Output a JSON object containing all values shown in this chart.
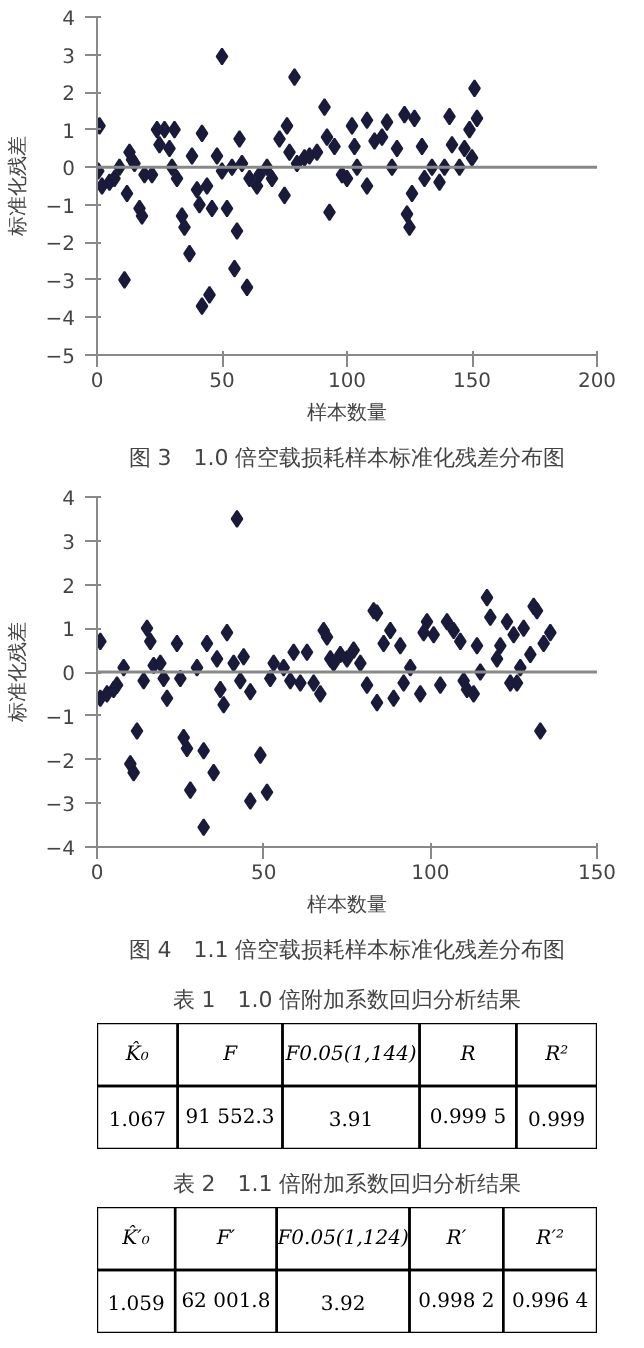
{
  "chart_data": [
    {
      "type": "scatter",
      "title": "图 3　1.0 倍空载损耗样本标准化残差分布图",
      "xlabel": "样本数量",
      "ylabel": "标准化残差",
      "color": "#1a1a3a",
      "marker": "diamond",
      "grid": false,
      "ref_lines": [
        {
          "axis": "y",
          "value": 0,
          "color": "#888888"
        }
      ],
      "xlim": [
        0,
        200
      ],
      "ylim": [
        -5,
        4
      ],
      "xticks": [
        0,
        50,
        100,
        150,
        200
      ],
      "yticks": [
        -5,
        -4,
        -3,
        -2,
        -1,
        0,
        1,
        2,
        3,
        4
      ],
      "x": [
        1,
        0.5,
        2,
        5,
        7,
        9,
        12,
        11,
        13,
        14,
        15,
        17,
        18,
        19,
        22,
        24,
        25,
        27,
        29,
        31,
        30,
        32,
        34,
        35,
        37,
        38,
        40,
        41,
        42,
        42,
        44,
        45,
        46,
        48,
        50,
        50,
        52,
        54,
        55,
        56,
        57,
        58,
        60,
        61,
        64,
        65,
        68,
        70,
        73,
        75,
        76,
        77,
        79,
        80,
        83,
        85,
        88,
        91,
        92,
        93,
        95,
        98,
        100,
        102,
        103,
        104,
        108,
        108,
        111,
        114,
        116,
        118,
        120,
        123,
        124,
        125,
        126,
        127,
        130,
        131,
        134,
        137,
        139,
        141,
        142,
        145,
        147,
        149,
        150,
        151,
        152
      ],
      "values": [
        1.1,
        -0.1,
        -0.5,
        -0.4,
        -0.3,
        0,
        -0.7,
        -3.0,
        0.4,
        0.2,
        0.1,
        -1.1,
        -1.3,
        -0.2,
        -0.2,
        1.0,
        0.6,
        1.0,
        0.5,
        1.0,
        0,
        -0.3,
        -1.3,
        -1.6,
        -2.3,
        0.3,
        -0.6,
        -1.0,
        0.9,
        -3.7,
        -0.5,
        -3.4,
        -1.1,
        0.3,
        2.95,
        -0.1,
        -1.1,
        0,
        -2.7,
        -1.7,
        0.75,
        0.1,
        -3.2,
        -0.3,
        -0.5,
        -0.2,
        0,
        -0.3,
        0.75,
        -0.75,
        1.1,
        0.4,
        2.4,
        0.1,
        0.25,
        0.3,
        0.4,
        1.6,
        0.8,
        -1.2,
        0.55,
        -0.2,
        -0.3,
        1.1,
        0.55,
        0,
        -0.5,
        1.25,
        0.7,
        0.8,
        1.2,
        0,
        0.5,
        1.4,
        -1.25,
        -1.6,
        -0.7,
        1.3,
        0.55,
        -0.3,
        0,
        -0.4,
        0,
        1.35,
        0.6,
        0,
        0.5,
        1.0,
        0.25,
        2.1,
        1.3
      ]
    },
    {
      "type": "scatter",
      "title": "图 4　1.1 倍空载损耗样本标准化残差分布图",
      "xlabel": "样本数量",
      "ylabel": "标准化残差",
      "color": "#1a1a3a",
      "marker": "diamond",
      "grid": false,
      "ref_lines": [
        {
          "axis": "y",
          "value": 0,
          "color": "#888888"
        }
      ],
      "xlim": [
        0,
        150
      ],
      "ylim": [
        -4,
        4
      ],
      "xticks": [
        0,
        50,
        100,
        150
      ],
      "yticks": [
        -4,
        -3,
        -2,
        -1,
        0,
        1,
        2,
        3,
        4
      ],
      "x": [
        1,
        1,
        3,
        5,
        6,
        8,
        10,
        11,
        12,
        14,
        15,
        16,
        17,
        19,
        20,
        21,
        24,
        25,
        26,
        27,
        28,
        30,
        32,
        32,
        33,
        35,
        36,
        37,
        38,
        39,
        41,
        42,
        43,
        44,
        46,
        46,
        49,
        51,
        52,
        53,
        56,
        58,
        59,
        61,
        63,
        65,
        67,
        68,
        69,
        70,
        71,
        73,
        75,
        77,
        79,
        81,
        83,
        84,
        84,
        86,
        88,
        89,
        91,
        92,
        94,
        97,
        98,
        99,
        101,
        103,
        105,
        107,
        109,
        110,
        111,
        113,
        114,
        115,
        117,
        118,
        120,
        121,
        123,
        124,
        125,
        126,
        127,
        128,
        130,
        131,
        132,
        133,
        134,
        136
      ],
      "values": [
        0.7,
        -0.6,
        -0.5,
        -0.4,
        -0.3,
        0.1,
        -2.1,
        -2.3,
        -1.35,
        -0.2,
        1.0,
        0.7,
        0.15,
        0.2,
        -0.15,
        -0.6,
        0.65,
        -0.15,
        -1.5,
        -1.75,
        -2.7,
        0.1,
        -1.8,
        -3.55,
        0.65,
        -2.3,
        0.3,
        -0.4,
        -0.75,
        0.9,
        0.2,
        3.5,
        -0.2,
        0.35,
        -0.45,
        -2.95,
        -1.9,
        -2.75,
        -0.15,
        0.2,
        0.1,
        -0.2,
        0.45,
        -0.25,
        0.45,
        -0.25,
        -0.5,
        0.95,
        0.8,
        0.3,
        0.2,
        0.4,
        0.3,
        0.5,
        0.2,
        -0.3,
        1.4,
        1.35,
        -0.7,
        0.65,
        0.95,
        -0.6,
        0.6,
        -0.25,
        0.1,
        -0.5,
        0.9,
        1.15,
        0.85,
        -0.3,
        1.15,
        0.95,
        0.7,
        -0.2,
        -0.4,
        -0.5,
        0.6,
        0,
        1.7,
        1.25,
        0.3,
        0.6,
        1.15,
        -0.25,
        0.85,
        -0.25,
        0.1,
        1.0,
        0.4,
        1.5,
        1.4,
        -1.35,
        0.65,
        0.9
      ]
    },
    {
      "type": "other",
      "title": "表 1　1.0 倍附加系数回归分析结果",
      "categories": [
        "K̂₀",
        "F",
        "F0.05(1,144)",
        "R",
        "R²"
      ],
      "values": [
        1.067,
        91552.3,
        3.91,
        0.9995,
        0.999
      ],
      "value_labels": [
        "1.067",
        "91 552.3",
        "3.91",
        "0.999 5",
        "0.999"
      ]
    },
    {
      "type": "other",
      "title": "表 2　1.1 倍附加系数回归分析结果",
      "categories": [
        "K̂′₀",
        "F′",
        "F0.05(1,124)",
        "R′",
        "R′²"
      ],
      "values": [
        1.059,
        62001.8,
        3.92,
        0.9982,
        0.9964
      ],
      "value_labels": [
        "1.059",
        "62 001.8",
        "3.92",
        "0.998 2",
        "0.996 4"
      ]
    }
  ]
}
